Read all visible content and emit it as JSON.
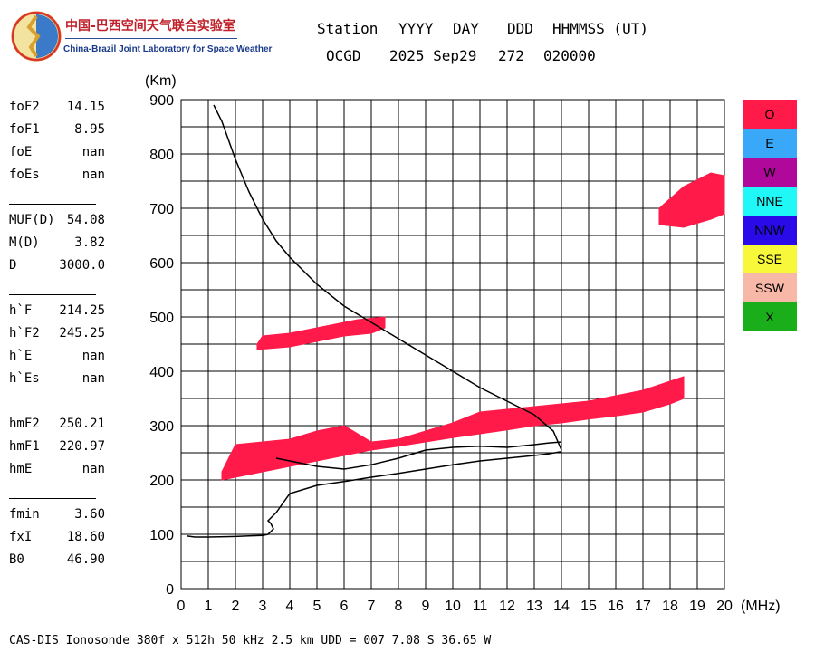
{
  "logo": {
    "name_cn": "中国-巴西空间天气联合实验室",
    "name_en": "China-Brazil Joint Laboratory for Space Weather"
  },
  "header": {
    "row1": [
      "Station",
      "YYYY",
      "DAY",
      "DDD",
      "HHMMSS (UT)"
    ],
    "row2": [
      "OCGD",
      "2025 Sep29",
      "272",
      "020000"
    ]
  },
  "parameters": [
    {
      "name": "foF2",
      "value": "14.15"
    },
    {
      "name": "foF1",
      "value": "8.95"
    },
    {
      "name": "foE",
      "value": "nan"
    },
    {
      "name": "foEs",
      "value": "nan"
    },
    {
      "name": "MUF(D)",
      "value": "54.08"
    },
    {
      "name": "M(D)",
      "value": "3.82"
    },
    {
      "name": "D",
      "value": "3000.0"
    },
    {
      "name": "h`F",
      "value": "214.25"
    },
    {
      "name": "h`F2",
      "value": "245.25"
    },
    {
      "name": "h`E",
      "value": "nan"
    },
    {
      "name": "h`Es",
      "value": "nan"
    },
    {
      "name": "hmF2",
      "value": "250.21"
    },
    {
      "name": "hmF1",
      "value": "220.97"
    },
    {
      "name": "hmE",
      "value": "nan"
    },
    {
      "name": "fmin",
      "value": "3.60"
    },
    {
      "name": "fxI",
      "value": "18.60"
    },
    {
      "name": "B0",
      "value": "46.90"
    }
  ],
  "legend": [
    {
      "label": "O",
      "color": "#ff1a4a"
    },
    {
      "label": "E",
      "color": "#3aa8f8"
    },
    {
      "label": "W",
      "color": "#b0089a"
    },
    {
      "label": "NNE",
      "color": "#20f8f8"
    },
    {
      "label": "NNW",
      "color": "#2a0ae8"
    },
    {
      "label": "SSE",
      "color": "#f8f83a"
    },
    {
      "label": "SSW",
      "color": "#f8b8a8"
    },
    {
      "label": "X",
      "color": "#1aae1a"
    }
  ],
  "footer": "CAS-DIS Ionosonde 380f x 512h 50 kHz 2.5 km UDD = 007 7.08 S 36.65 W",
  "chart_data": {
    "type": "scatter",
    "xlabel": "(MHz)",
    "ylabel": "(Km)",
    "xlim": [
      0,
      20
    ],
    "ylim": [
      0,
      900
    ],
    "xticks": [
      0,
      1,
      2,
      3,
      4,
      5,
      6,
      7,
      8,
      9,
      10,
      11,
      12,
      13,
      14,
      15,
      16,
      17,
      18,
      19,
      20
    ],
    "yticks": [
      0,
      100,
      200,
      300,
      400,
      500,
      600,
      700,
      800,
      900
    ],
    "grid": true,
    "legend_position": "right",
    "echo_regions": [
      {
        "mode": "O",
        "points": [
          [
            1.5,
            200
          ],
          [
            2,
            205
          ],
          [
            3,
            215
          ],
          [
            4,
            225
          ],
          [
            5,
            235
          ],
          [
            6,
            245
          ],
          [
            7,
            255
          ],
          [
            8,
            262
          ],
          [
            9,
            270
          ],
          [
            10,
            278
          ],
          [
            11,
            285
          ],
          [
            12,
            292
          ],
          [
            13,
            300
          ],
          [
            14,
            305
          ],
          [
            15,
            312
          ],
          [
            16,
            318
          ],
          [
            17,
            325
          ],
          [
            18,
            340
          ],
          [
            18.5,
            350
          ],
          [
            18.5,
            390
          ],
          [
            17,
            365
          ],
          [
            16,
            355
          ],
          [
            15,
            345
          ],
          [
            14,
            340
          ],
          [
            13,
            335
          ],
          [
            12,
            330
          ],
          [
            11,
            325
          ],
          [
            10,
            305
          ],
          [
            9,
            290
          ],
          [
            8,
            275
          ],
          [
            7,
            270
          ],
          [
            6,
            300
          ],
          [
            5,
            290
          ],
          [
            4,
            275
          ],
          [
            3,
            270
          ],
          [
            2,
            265
          ],
          [
            1.5,
            215
          ]
        ]
      },
      {
        "mode": "O",
        "points": [
          [
            2.8,
            440
          ],
          [
            4,
            445
          ],
          [
            5,
            455
          ],
          [
            6,
            465
          ],
          [
            7,
            470
          ],
          [
            7.5,
            480
          ],
          [
            7.5,
            500
          ],
          [
            6.5,
            495
          ],
          [
            5,
            480
          ],
          [
            4,
            470
          ],
          [
            3,
            465
          ],
          [
            2.8,
            450
          ]
        ]
      },
      {
        "mode": "O",
        "points": [
          [
            17.6,
            670
          ],
          [
            18.5,
            665
          ],
          [
            19.5,
            680
          ],
          [
            20,
            690
          ],
          [
            20,
            760
          ],
          [
            19.5,
            765
          ],
          [
            18.5,
            740
          ],
          [
            17.6,
            700
          ]
        ]
      }
    ],
    "series": [
      {
        "name": "O",
        "x": [
          1.2,
          1.5,
          2,
          2.5,
          3,
          3.5,
          4,
          5,
          6,
          7,
          8,
          9,
          10,
          11,
          12,
          13,
          13.7,
          14
        ],
        "y": [
          890,
          860,
          790,
          730,
          680,
          640,
          610,
          560,
          520,
          490,
          460,
          430,
          400,
          370,
          345,
          320,
          290,
          255
        ]
      },
      {
        "name": "O",
        "x": [
          0.2,
          0.5,
          1,
          2,
          2.5,
          3,
          3.2,
          3.4,
          3.3,
          3.2,
          3.3,
          3.5,
          4,
          5,
          6,
          7,
          8,
          9,
          10,
          11,
          12,
          13,
          13.5,
          14
        ],
        "y": [
          97,
          95,
          95,
          96,
          97,
          98,
          100,
          110,
          120,
          125,
          130,
          140,
          175,
          190,
          197,
          205,
          212,
          220,
          228,
          235,
          240,
          245,
          248,
          252
        ]
      },
      {
        "name": "O",
        "x": [
          3.5,
          4,
          5,
          6,
          7,
          8,
          9,
          10,
          11,
          12,
          13,
          13.5,
          14
        ],
        "y": [
          240,
          235,
          225,
          220,
          228,
          240,
          255,
          260,
          262,
          260,
          265,
          268,
          270
        ]
      }
    ]
  }
}
